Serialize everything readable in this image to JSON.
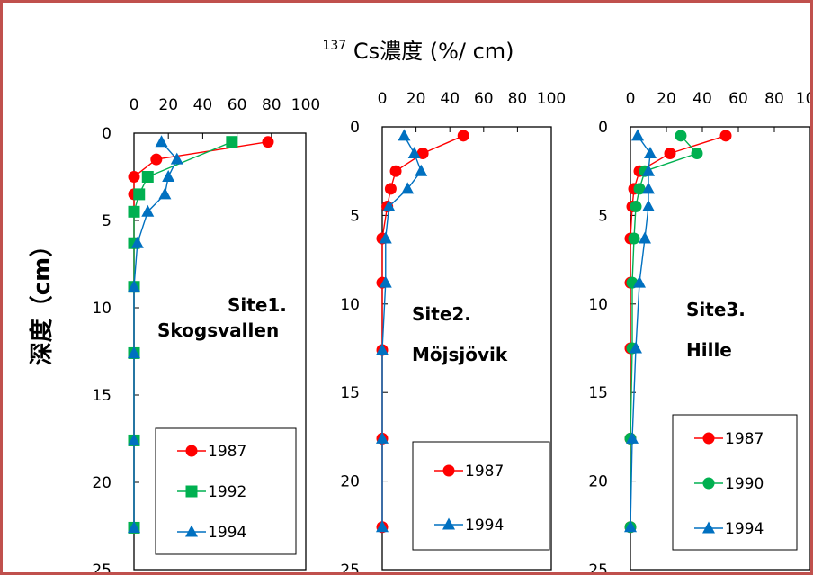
{
  "title_sup": "137",
  "title_main": "Cs濃度 (%/ cm)",
  "ylabel": "深度（cm）",
  "colors": {
    "1987": "#ff0000",
    "1990": "#00b050",
    "1992": "#00b050",
    "1994": "#0070c0",
    "frame": "#c0504d"
  },
  "chart_data": [
    {
      "type": "line",
      "site_line1": "Site1.",
      "site_line2": "Skogsvallen",
      "xlim": [
        0,
        100
      ],
      "ylim": [
        0,
        25
      ],
      "x_ticks": [
        "0",
        "20",
        "40",
        "60",
        "80",
        "100"
      ],
      "y_ticks": [
        "0",
        "5",
        "10",
        "15",
        "20",
        "25"
      ],
      "series": [
        {
          "name": "1987",
          "marker": "circle",
          "points": [
            [
              78,
              0.5
            ],
            [
              13,
              1.5
            ],
            [
              0,
              2.5
            ],
            [
              0,
              3.5
            ],
            [
              0,
              4.5
            ],
            [
              0,
              6.3
            ],
            [
              0,
              8.8
            ],
            [
              0,
              12.6
            ],
            [
              0,
              17.6
            ],
            [
              0,
              22.6
            ]
          ]
        },
        {
          "name": "1992",
          "marker": "square",
          "points": [
            [
              57,
              0.5
            ],
            [
              8,
              2.5
            ],
            [
              3,
              3.5
            ],
            [
              0,
              4.5
            ],
            [
              0,
              6.3
            ],
            [
              0,
              8.8
            ],
            [
              0,
              12.6
            ],
            [
              0,
              17.6
            ],
            [
              0,
              22.6
            ]
          ]
        },
        {
          "name": "1994",
          "marker": "triangle",
          "points": [
            [
              16,
              0.5
            ],
            [
              25,
              1.5
            ],
            [
              20,
              2.5
            ],
            [
              18,
              3.5
            ],
            [
              8,
              4.5
            ],
            [
              2,
              6.3
            ],
            [
              0,
              8.8
            ],
            [
              0,
              12.6
            ],
            [
              0,
              17.6
            ],
            [
              0,
              22.6
            ]
          ]
        }
      ]
    },
    {
      "type": "line",
      "site_line1": "Site2.",
      "site_line2": "Möjsjövik",
      "xlim": [
        0,
        100
      ],
      "ylim": [
        0,
        25
      ],
      "x_ticks": [
        "0",
        "20",
        "40",
        "60",
        "80",
        "100"
      ],
      "y_ticks": [
        "0",
        "5",
        "10",
        "15",
        "20",
        "25"
      ],
      "series": [
        {
          "name": "1987",
          "marker": "circle",
          "points": [
            [
              48,
              0.5
            ],
            [
              24,
              1.5
            ],
            [
              8,
              2.5
            ],
            [
              5,
              3.5
            ],
            [
              3,
              4.5
            ],
            [
              0,
              6.3
            ],
            [
              0,
              8.8
            ],
            [
              0,
              12.6
            ],
            [
              0,
              17.6
            ],
            [
              0,
              22.6
            ]
          ]
        },
        {
          "name": "1994",
          "marker": "triangle",
          "points": [
            [
              13,
              0.5
            ],
            [
              19,
              1.5
            ],
            [
              23,
              2.5
            ],
            [
              15,
              3.5
            ],
            [
              4,
              4.5
            ],
            [
              2,
              6.3
            ],
            [
              2,
              8.8
            ],
            [
              0,
              12.6
            ],
            [
              0,
              17.6
            ],
            [
              0,
              22.6
            ]
          ]
        }
      ]
    },
    {
      "type": "line",
      "site_line1": "Site3.",
      "site_line2": "Hille",
      "xlim": [
        0,
        100
      ],
      "ylim": [
        0,
        25
      ],
      "x_ticks": [
        "0",
        "20",
        "40",
        "60",
        "80",
        "100"
      ],
      "y_ticks": [
        "0",
        "5",
        "10",
        "15",
        "20",
        "25"
      ],
      "series": [
        {
          "name": "1987",
          "marker": "circle",
          "points": [
            [
              53,
              0.5
            ],
            [
              22,
              1.5
            ],
            [
              5,
              2.5
            ],
            [
              2,
              3.5
            ],
            [
              1,
              4.5
            ],
            [
              0,
              6.3
            ],
            [
              0,
              8.8
            ],
            [
              0,
              12.5
            ],
            [
              0,
              17.6
            ],
            [
              0,
              22.6
            ]
          ]
        },
        {
          "name": "1990",
          "marker": "circle",
          "points": [
            [
              28,
              0.5
            ],
            [
              37,
              1.5
            ],
            [
              8,
              2.5
            ],
            [
              5,
              3.5
            ],
            [
              3,
              4.5
            ],
            [
              2,
              6.3
            ],
            [
              1,
              8.8
            ],
            [
              1,
              12.5
            ],
            [
              0,
              17.6
            ],
            [
              0,
              22.6
            ]
          ]
        },
        {
          "name": "1994",
          "marker": "triangle",
          "points": [
            [
              4,
              0.5
            ],
            [
              11,
              1.5
            ],
            [
              10,
              2.5
            ],
            [
              10,
              3.5
            ],
            [
              10,
              4.5
            ],
            [
              8,
              6.3
            ],
            [
              5,
              8.8
            ],
            [
              3,
              12.5
            ],
            [
              1,
              17.6
            ],
            [
              0,
              22.6
            ]
          ]
        }
      ]
    }
  ]
}
